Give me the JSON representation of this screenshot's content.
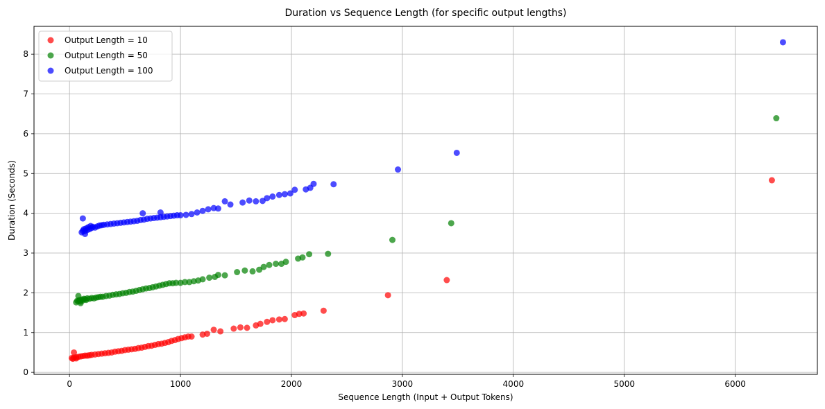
{
  "chart_data": {
    "type": "scatter",
    "title": "Duration vs Sequence Length (for specific output lengths)",
    "xlabel": "Sequence Length (Input + Output Tokens)",
    "ylabel": "Duration (Seconds)",
    "xlim": [
      -320,
      6740
    ],
    "ylim": [
      -0.05,
      8.7
    ],
    "xticks": [
      0,
      1000,
      2000,
      3000,
      4000,
      5000,
      6000
    ],
    "yticks": [
      0,
      1,
      2,
      3,
      4,
      5,
      6,
      7,
      8
    ],
    "grid": true,
    "legend_position": "top-left",
    "series": [
      {
        "name": "Output Length = 10",
        "color": "#ff0000",
        "points": [
          [
            20,
            0.36
          ],
          [
            40,
            0.37
          ],
          [
            60,
            0.38
          ],
          [
            80,
            0.39
          ],
          [
            100,
            0.4
          ],
          [
            120,
            0.41
          ],
          [
            140,
            0.42
          ],
          [
            160,
            0.42
          ],
          [
            180,
            0.43
          ],
          [
            200,
            0.44
          ],
          [
            230,
            0.45
          ],
          [
            260,
            0.46
          ],
          [
            290,
            0.47
          ],
          [
            320,
            0.48
          ],
          [
            350,
            0.49
          ],
          [
            380,
            0.5
          ],
          [
            410,
            0.52
          ],
          [
            440,
            0.53
          ],
          [
            470,
            0.54
          ],
          [
            500,
            0.56
          ],
          [
            530,
            0.57
          ],
          [
            560,
            0.58
          ],
          [
            590,
            0.59
          ],
          [
            620,
            0.61
          ],
          [
            650,
            0.62
          ],
          [
            680,
            0.64
          ],
          [
            710,
            0.66
          ],
          [
            740,
            0.67
          ],
          [
            770,
            0.69
          ],
          [
            800,
            0.71
          ],
          [
            830,
            0.72
          ],
          [
            860,
            0.74
          ],
          [
            890,
            0.76
          ],
          [
            920,
            0.79
          ],
          [
            950,
            0.81
          ],
          [
            980,
            0.84
          ],
          [
            1010,
            0.86
          ],
          [
            1040,
            0.88
          ],
          [
            1070,
            0.9
          ],
          [
            1100,
            0.9
          ],
          [
            1200,
            0.95
          ],
          [
            1240,
            0.97
          ],
          [
            1300,
            1.07
          ],
          [
            1360,
            1.03
          ],
          [
            1480,
            1.1
          ],
          [
            1540,
            1.13
          ],
          [
            1600,
            1.12
          ],
          [
            1680,
            1.18
          ],
          [
            1720,
            1.22
          ],
          [
            1780,
            1.27
          ],
          [
            1830,
            1.31
          ],
          [
            1890,
            1.33
          ],
          [
            1940,
            1.34
          ],
          [
            2030,
            1.44
          ],
          [
            2070,
            1.47
          ],
          [
            2110,
            1.48
          ],
          [
            2290,
            1.55
          ],
          [
            2870,
            1.94
          ],
          [
            3400,
            2.32
          ],
          [
            6330,
            4.83
          ],
          [
            40,
            0.5
          ],
          [
            30,
            0.34
          ],
          [
            60,
            0.35
          ]
        ]
      },
      {
        "name": "Output Length = 50",
        "color": "#008000",
        "points": [
          [
            60,
            1.76
          ],
          [
            70,
            1.8
          ],
          [
            80,
            1.79
          ],
          [
            90,
            1.82
          ],
          [
            100,
            1.78
          ],
          [
            110,
            1.83
          ],
          [
            120,
            1.81
          ],
          [
            130,
            1.85
          ],
          [
            140,
            1.84
          ],
          [
            150,
            1.82
          ],
          [
            160,
            1.86
          ],
          [
            180,
            1.85
          ],
          [
            200,
            1.87
          ],
          [
            220,
            1.86
          ],
          [
            240,
            1.88
          ],
          [
            260,
            1.89
          ],
          [
            280,
            1.9
          ],
          [
            300,
            1.9
          ],
          [
            330,
            1.92
          ],
          [
            360,
            1.93
          ],
          [
            390,
            1.95
          ],
          [
            420,
            1.96
          ],
          [
            450,
            1.97
          ],
          [
            480,
            1.99
          ],
          [
            510,
            2.0
          ],
          [
            540,
            2.02
          ],
          [
            570,
            2.03
          ],
          [
            600,
            2.05
          ],
          [
            630,
            2.07
          ],
          [
            660,
            2.09
          ],
          [
            690,
            2.11
          ],
          [
            720,
            2.12
          ],
          [
            750,
            2.14
          ],
          [
            780,
            2.16
          ],
          [
            810,
            2.18
          ],
          [
            840,
            2.2
          ],
          [
            870,
            2.22
          ],
          [
            900,
            2.24
          ],
          [
            930,
            2.24
          ],
          [
            960,
            2.25
          ],
          [
            1000,
            2.25
          ],
          [
            1040,
            2.27
          ],
          [
            1080,
            2.27
          ],
          [
            1120,
            2.29
          ],
          [
            1160,
            2.31
          ],
          [
            1200,
            2.34
          ],
          [
            1260,
            2.38
          ],
          [
            1310,
            2.4
          ],
          [
            1340,
            2.45
          ],
          [
            1400,
            2.44
          ],
          [
            1510,
            2.52
          ],
          [
            1580,
            2.56
          ],
          [
            1650,
            2.54
          ],
          [
            1710,
            2.58
          ],
          [
            1750,
            2.65
          ],
          [
            1800,
            2.7
          ],
          [
            1860,
            2.73
          ],
          [
            1910,
            2.73
          ],
          [
            1950,
            2.78
          ],
          [
            2060,
            2.86
          ],
          [
            2100,
            2.89
          ],
          [
            2160,
            2.97
          ],
          [
            2330,
            2.98
          ],
          [
            2910,
            3.33
          ],
          [
            3440,
            3.75
          ],
          [
            6370,
            6.39
          ],
          [
            80,
            1.92
          ],
          [
            100,
            1.74
          ]
        ]
      },
      {
        "name": "Output Length = 100",
        "color": "#0000ff",
        "points": [
          [
            110,
            3.52
          ],
          [
            120,
            3.56
          ],
          [
            130,
            3.6
          ],
          [
            140,
            3.55
          ],
          [
            150,
            3.62
          ],
          [
            160,
            3.58
          ],
          [
            170,
            3.65
          ],
          [
            180,
            3.6
          ],
          [
            190,
            3.68
          ],
          [
            200,
            3.63
          ],
          [
            210,
            3.66
          ],
          [
            230,
            3.64
          ],
          [
            250,
            3.67
          ],
          [
            270,
            3.69
          ],
          [
            290,
            3.7
          ],
          [
            310,
            3.71
          ],
          [
            340,
            3.72
          ],
          [
            370,
            3.73
          ],
          [
            400,
            3.74
          ],
          [
            430,
            3.75
          ],
          [
            460,
            3.76
          ],
          [
            490,
            3.77
          ],
          [
            520,
            3.78
          ],
          [
            550,
            3.79
          ],
          [
            580,
            3.8
          ],
          [
            610,
            3.81
          ],
          [
            640,
            3.83
          ],
          [
            670,
            3.84
          ],
          [
            700,
            3.86
          ],
          [
            730,
            3.87
          ],
          [
            760,
            3.88
          ],
          [
            790,
            3.89
          ],
          [
            820,
            3.9
          ],
          [
            850,
            3.91
          ],
          [
            880,
            3.92
          ],
          [
            910,
            3.93
          ],
          [
            940,
            3.94
          ],
          [
            970,
            3.95
          ],
          [
            1000,
            3.95
          ],
          [
            1050,
            3.96
          ],
          [
            1100,
            3.98
          ],
          [
            1150,
            4.02
          ],
          [
            1200,
            4.06
          ],
          [
            1250,
            4.1
          ],
          [
            1300,
            4.13
          ],
          [
            1340,
            4.12
          ],
          [
            1400,
            4.3
          ],
          [
            1450,
            4.22
          ],
          [
            1560,
            4.27
          ],
          [
            1620,
            4.32
          ],
          [
            1680,
            4.3
          ],
          [
            1740,
            4.31
          ],
          [
            1780,
            4.38
          ],
          [
            1830,
            4.42
          ],
          [
            1890,
            4.46
          ],
          [
            1940,
            4.48
          ],
          [
            1990,
            4.5
          ],
          [
            2030,
            4.59
          ],
          [
            2130,
            4.6
          ],
          [
            2170,
            4.64
          ],
          [
            2200,
            4.74
          ],
          [
            2380,
            4.73
          ],
          [
            2960,
            5.1
          ],
          [
            3490,
            5.52
          ],
          [
            6430,
            8.3
          ],
          [
            120,
            3.87
          ],
          [
            140,
            3.48
          ],
          [
            660,
            4.0
          ],
          [
            820,
            4.02
          ]
        ]
      }
    ]
  }
}
